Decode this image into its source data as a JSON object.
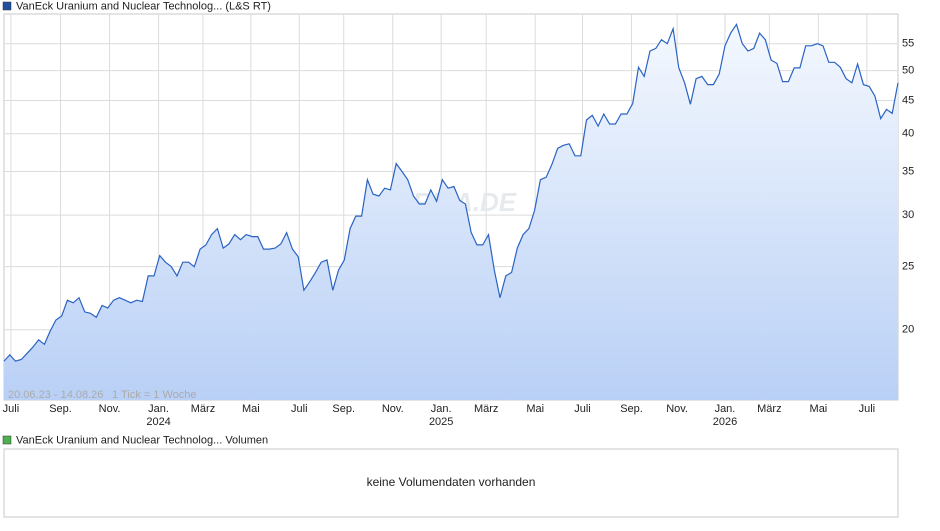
{
  "chart_data": [
    {
      "type": "area",
      "legend": "VanEck Uranium and Nuclear Technolog... (L&S RT)",
      "legend_color": "#1f4fa0",
      "range_text": "20.06.23 - 14.08.26",
      "tick_text": "1 Tick = 1 Woche",
      "watermark": "ARIVA.DE",
      "log_scale": true,
      "grid": true,
      "color": "#2a63c4",
      "ylim": [
        15.6,
        61.1
      ],
      "yticks": [
        20,
        25,
        30,
        35,
        40,
        45,
        50,
        55
      ],
      "xlim": [
        0,
        155
      ],
      "xticks": [
        {
          "value": 1.2,
          "label": "Juli"
        },
        {
          "value": 9.8,
          "label": "Sep."
        },
        {
          "value": 18.3,
          "label": "Nov."
        },
        {
          "value": 26.8,
          "label": "Jan."
        },
        {
          "value": 34.5,
          "label": "März"
        },
        {
          "value": 42.8,
          "label": "Mai"
        },
        {
          "value": 51.2,
          "label": "Juli"
        },
        {
          "value": 58.9,
          "label": "Sep."
        },
        {
          "value": 67.4,
          "label": "Nov."
        },
        {
          "value": 75.8,
          "label": "Jan."
        },
        {
          "value": 83.6,
          "label": "März"
        },
        {
          "value": 92.1,
          "label": "Mai"
        },
        {
          "value": 100.3,
          "label": "Juli"
        },
        {
          "value": 108.8,
          "label": "Sep."
        },
        {
          "value": 116.7,
          "label": "Nov."
        },
        {
          "value": 125.0,
          "label": "Jan."
        },
        {
          "value": 132.7,
          "label": "März"
        },
        {
          "value": 141.2,
          "label": "Mai"
        },
        {
          "value": 149.6,
          "label": "Juli"
        }
      ],
      "year_labels": [
        {
          "value": 26.8,
          "label": "2024"
        },
        {
          "value": 75.8,
          "label": "2025"
        },
        {
          "value": 125.0,
          "label": "2026"
        }
      ],
      "values": [
        17.9,
        18.3,
        17.9,
        18.0,
        18.4,
        18.8,
        19.3,
        19.0,
        19.9,
        20.7,
        21.0,
        22.2,
        22.0,
        22.4,
        21.3,
        21.2,
        20.9,
        21.8,
        21.6,
        22.2,
        22.4,
        22.2,
        22.0,
        22.2,
        22.1,
        24.2,
        24.2,
        26.0,
        25.4,
        25.0,
        24.2,
        25.4,
        25.4,
        25.0,
        26.6,
        27.0,
        28.0,
        28.6,
        26.7,
        27.1,
        28.0,
        27.5,
        28.0,
        27.8,
        27.8,
        26.6,
        26.6,
        26.7,
        27.1,
        28.2,
        26.6,
        25.9,
        23.0,
        23.7,
        24.5,
        25.4,
        25.6,
        23.0,
        24.7,
        25.6,
        28.6,
        29.9,
        29.9,
        34.0,
        32.3,
        32.1,
        33.0,
        32.8,
        36.0,
        35.0,
        34.0,
        32.1,
        31.2,
        31.2,
        32.8,
        31.5,
        34.0,
        33.0,
        33.2,
        31.6,
        31.2,
        28.2,
        27.0,
        27.0,
        28.0,
        24.7,
        22.4,
        24.2,
        24.5,
        26.7,
        28.0,
        28.6,
        30.5,
        34.0,
        34.3,
        35.9,
        38.0,
        38.4,
        38.6,
        37.0,
        37.0,
        42.0,
        42.7,
        41.1,
        42.9,
        41.4,
        41.4,
        42.9,
        42.9,
        44.5,
        50.6,
        49.0,
        53.6,
        54.1,
        55.8,
        55.0,
        58.0,
        50.5,
        47.9,
        44.4,
        48.6,
        49.0,
        47.6,
        47.6,
        49.4,
        54.6,
        57.1,
        58.9,
        55.0,
        53.6,
        54.1,
        57.1,
        55.8,
        51.9,
        51.3,
        48.1,
        48.1,
        50.5,
        50.5,
        54.6,
        54.6,
        55.0,
        54.6,
        51.5,
        51.5,
        50.6,
        48.6,
        47.9,
        51.2,
        47.6,
        47.3,
        45.7,
        42.2,
        43.6,
        43.0,
        47.9
      ]
    },
    {
      "type": "volume",
      "legend": "VanEck Uranium and Nuclear Technolog... Volumen",
      "legend_color": "#4caf50",
      "message": "keine Volumendaten vorhanden"
    }
  ]
}
